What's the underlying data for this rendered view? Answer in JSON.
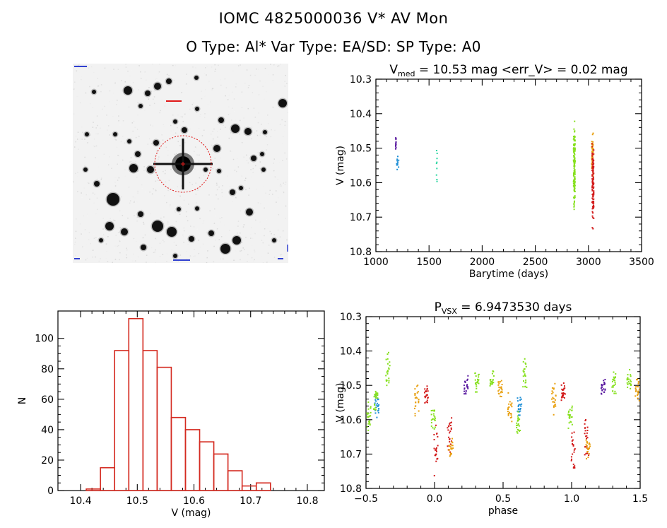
{
  "header": {
    "title": "IOMC 4825000036    V* AV Mon",
    "subtitle": "O Type: Al*   Var Type: EA/SD:   SP Type: A0"
  },
  "colors": {
    "histogram_bar": "#d42a20",
    "series_1": "#5a1aa0",
    "series_2": "#1e8fd6",
    "series_3": "#2ad6a0",
    "series_4": "#86e01e",
    "series_5": "#e8a010",
    "series_6": "#d21a1a"
  },
  "chart_data": [
    {
      "type": "scatter",
      "title_main": "V",
      "title_sub": "med",
      "title_rest": " = 10.53 mag <err_V> = 0.02 mag",
      "xlabel": "Barytime (days)",
      "ylabel": "V (mag)",
      "xlim": [
        1000,
        3500
      ],
      "ylim": [
        10.8,
        10.3
      ],
      "xticks": [
        1000,
        1500,
        2000,
        2500,
        3000,
        3500
      ],
      "yticks": [
        10.3,
        10.4,
        10.5,
        10.6,
        10.7,
        10.8
      ],
      "x_tick_labels": [
        "1000",
        "1500",
        "2000",
        "2500",
        "3000",
        "3500"
      ],
      "y_tick_labels": [
        "10.3",
        "10.4",
        "10.5",
        "10.6",
        "10.7",
        "10.8"
      ],
      "series": [
        {
          "color_key": "series_1",
          "x_range": [
            1185,
            1192
          ],
          "y_range": [
            10.45,
            10.53
          ],
          "n": 14
        },
        {
          "color_key": "series_2",
          "x_range": [
            1195,
            1215
          ],
          "y_range": [
            10.51,
            10.57
          ],
          "n": 12
        },
        {
          "color_key": "series_3",
          "x_range": [
            1570,
            1578
          ],
          "y_range": [
            10.5,
            10.65
          ],
          "n": 9
        },
        {
          "color_key": "series_4",
          "x_range": [
            2860,
            2875
          ],
          "y_range": [
            10.4,
            10.72
          ],
          "n": 140
        },
        {
          "color_key": "series_5",
          "x_range": [
            3030,
            3045
          ],
          "y_range": [
            10.44,
            10.6
          ],
          "n": 60
        },
        {
          "color_key": "series_6",
          "x_range": [
            3035,
            3050
          ],
          "y_range": [
            10.46,
            10.77
          ],
          "n": 120
        }
      ]
    },
    {
      "type": "bar",
      "xlabel": "V (mag)",
      "ylabel": "N",
      "xlim": [
        10.36,
        10.83
      ],
      "ylim": [
        0,
        118
      ],
      "xticks": [
        10.4,
        10.5,
        10.6,
        10.7,
        10.8
      ],
      "yticks": [
        0,
        20,
        40,
        60,
        80,
        100
      ],
      "x_tick_labels": [
        "10.4",
        "10.5",
        "10.6",
        "10.7",
        "10.8"
      ],
      "y_tick_labels": [
        "0",
        "20",
        "40",
        "60",
        "80",
        "100"
      ],
      "bin_start": 10.41,
      "bin_width": 0.025,
      "values": [
        1,
        15,
        92,
        113,
        92,
        81,
        48,
        40,
        32,
        24,
        13,
        3,
        5
      ]
    },
    {
      "type": "scatter",
      "title_main": "P",
      "title_sub": "VSX",
      "title_rest": " = 6.9473530 days",
      "xlabel": "phase",
      "ylabel": "V (mag)",
      "xlim": [
        -0.5,
        1.5
      ],
      "ylim": [
        10.8,
        10.3
      ],
      "xticks": [
        -0.5,
        0.0,
        0.5,
        1.0,
        1.5
      ],
      "yticks": [
        10.3,
        10.4,
        10.5,
        10.6,
        10.7,
        10.8
      ],
      "x_tick_labels": [
        "−0.5",
        "0.0",
        "0.5",
        "1.0",
        "1.5"
      ],
      "y_tick_labels": [
        "10.3",
        "10.4",
        "10.5",
        "10.6",
        "10.7",
        "10.8"
      ],
      "clusters": [
        {
          "color_key": "series_4",
          "x": -0.48,
          "y_range": [
            10.54,
            10.64
          ]
        },
        {
          "color_key": "series_2",
          "x": -0.42,
          "y_range": [
            10.52,
            10.6
          ]
        },
        {
          "color_key": "series_4",
          "x": -0.43,
          "y_range": [
            10.5,
            10.58
          ]
        },
        {
          "color_key": "series_4",
          "x": -0.34,
          "y_range": [
            10.4,
            10.52
          ]
        },
        {
          "color_key": "series_5",
          "x": -0.13,
          "y_range": [
            10.48,
            10.6
          ]
        },
        {
          "color_key": "series_6",
          "x": -0.06,
          "y_range": [
            10.49,
            10.56
          ]
        },
        {
          "color_key": "series_4",
          "x": -0.01,
          "y_range": [
            10.55,
            10.63
          ]
        },
        {
          "color_key": "series_6",
          "x": 0.01,
          "y_range": [
            10.6,
            10.77
          ]
        },
        {
          "color_key": "series_6",
          "x": 0.11,
          "y_range": [
            10.56,
            10.72
          ]
        },
        {
          "color_key": "series_5",
          "x": 0.12,
          "y_range": [
            10.65,
            10.72
          ]
        },
        {
          "color_key": "series_1",
          "x": 0.23,
          "y_range": [
            10.47,
            10.54
          ]
        },
        {
          "color_key": "series_4",
          "x": 0.31,
          "y_range": [
            10.45,
            10.53
          ]
        },
        {
          "color_key": "series_4",
          "x": 0.42,
          "y_range": [
            10.45,
            10.52
          ]
        },
        {
          "color_key": "series_5",
          "x": 0.48,
          "y_range": [
            10.47,
            10.55
          ]
        },
        {
          "color_key": "series_5",
          "x": 0.55,
          "y_range": [
            10.52,
            10.62
          ]
        },
        {
          "color_key": "series_2",
          "x": 0.62,
          "y_range": [
            10.53,
            10.6
          ]
        },
        {
          "color_key": "series_4",
          "x": 0.61,
          "y_range": [
            10.56,
            10.66
          ]
        },
        {
          "color_key": "series_4",
          "x": 0.66,
          "y_range": [
            10.4,
            10.52
          ]
        },
        {
          "color_key": "series_5",
          "x": 0.87,
          "y_range": [
            10.48,
            10.6
          ]
        },
        {
          "color_key": "series_6",
          "x": 0.94,
          "y_range": [
            10.49,
            10.56
          ]
        },
        {
          "color_key": "series_4",
          "x": 0.99,
          "y_range": [
            10.55,
            10.63
          ]
        },
        {
          "color_key": "series_6",
          "x": 1.01,
          "y_range": [
            10.6,
            10.77
          ]
        },
        {
          "color_key": "series_6",
          "x": 1.11,
          "y_range": [
            10.56,
            10.72
          ]
        },
        {
          "color_key": "series_5",
          "x": 1.12,
          "y_range": [
            10.65,
            10.72
          ]
        },
        {
          "color_key": "series_1",
          "x": 1.23,
          "y_range": [
            10.47,
            10.54
          ]
        },
        {
          "color_key": "series_4",
          "x": 1.31,
          "y_range": [
            10.45,
            10.53
          ]
        },
        {
          "color_key": "series_4",
          "x": 1.42,
          "y_range": [
            10.45,
            10.52
          ]
        },
        {
          "color_key": "series_5",
          "x": 1.48,
          "y_range": [
            10.47,
            10.56
          ]
        }
      ]
    }
  ]
}
